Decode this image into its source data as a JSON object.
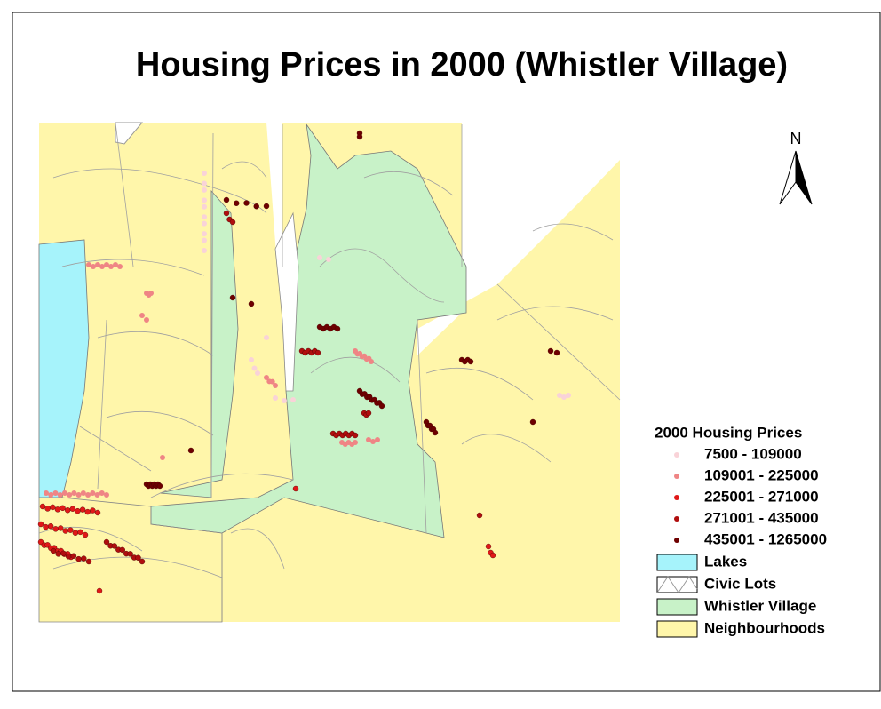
{
  "header": {
    "title": "Housing Prices in 2000 (Whistler Village)"
  },
  "north": {
    "label": "N"
  },
  "legend": {
    "title": "2000 Housing Prices",
    "classes": [
      {
        "label": "7500 - 109000",
        "color": "#f9d3d8"
      },
      {
        "label": "109001 - 225000",
        "color": "#ef8585"
      },
      {
        "label": "225001 - 271000",
        "color": "#e01818"
      },
      {
        "label": "271001 - 435000",
        "color": "#b00e0e"
      },
      {
        "label": "435001 - 1265000",
        "color": "#6e0000"
      }
    ],
    "layers": [
      {
        "label": "Lakes",
        "color": "#a6f3fb"
      },
      {
        "label": "Civic Lots",
        "color": "#ffffff"
      },
      {
        "label": "Whistler Village",
        "color": "#c8f2c8"
      },
      {
        "label": "Neighbourhoods",
        "color": "#fff6aa"
      }
    ]
  }
}
